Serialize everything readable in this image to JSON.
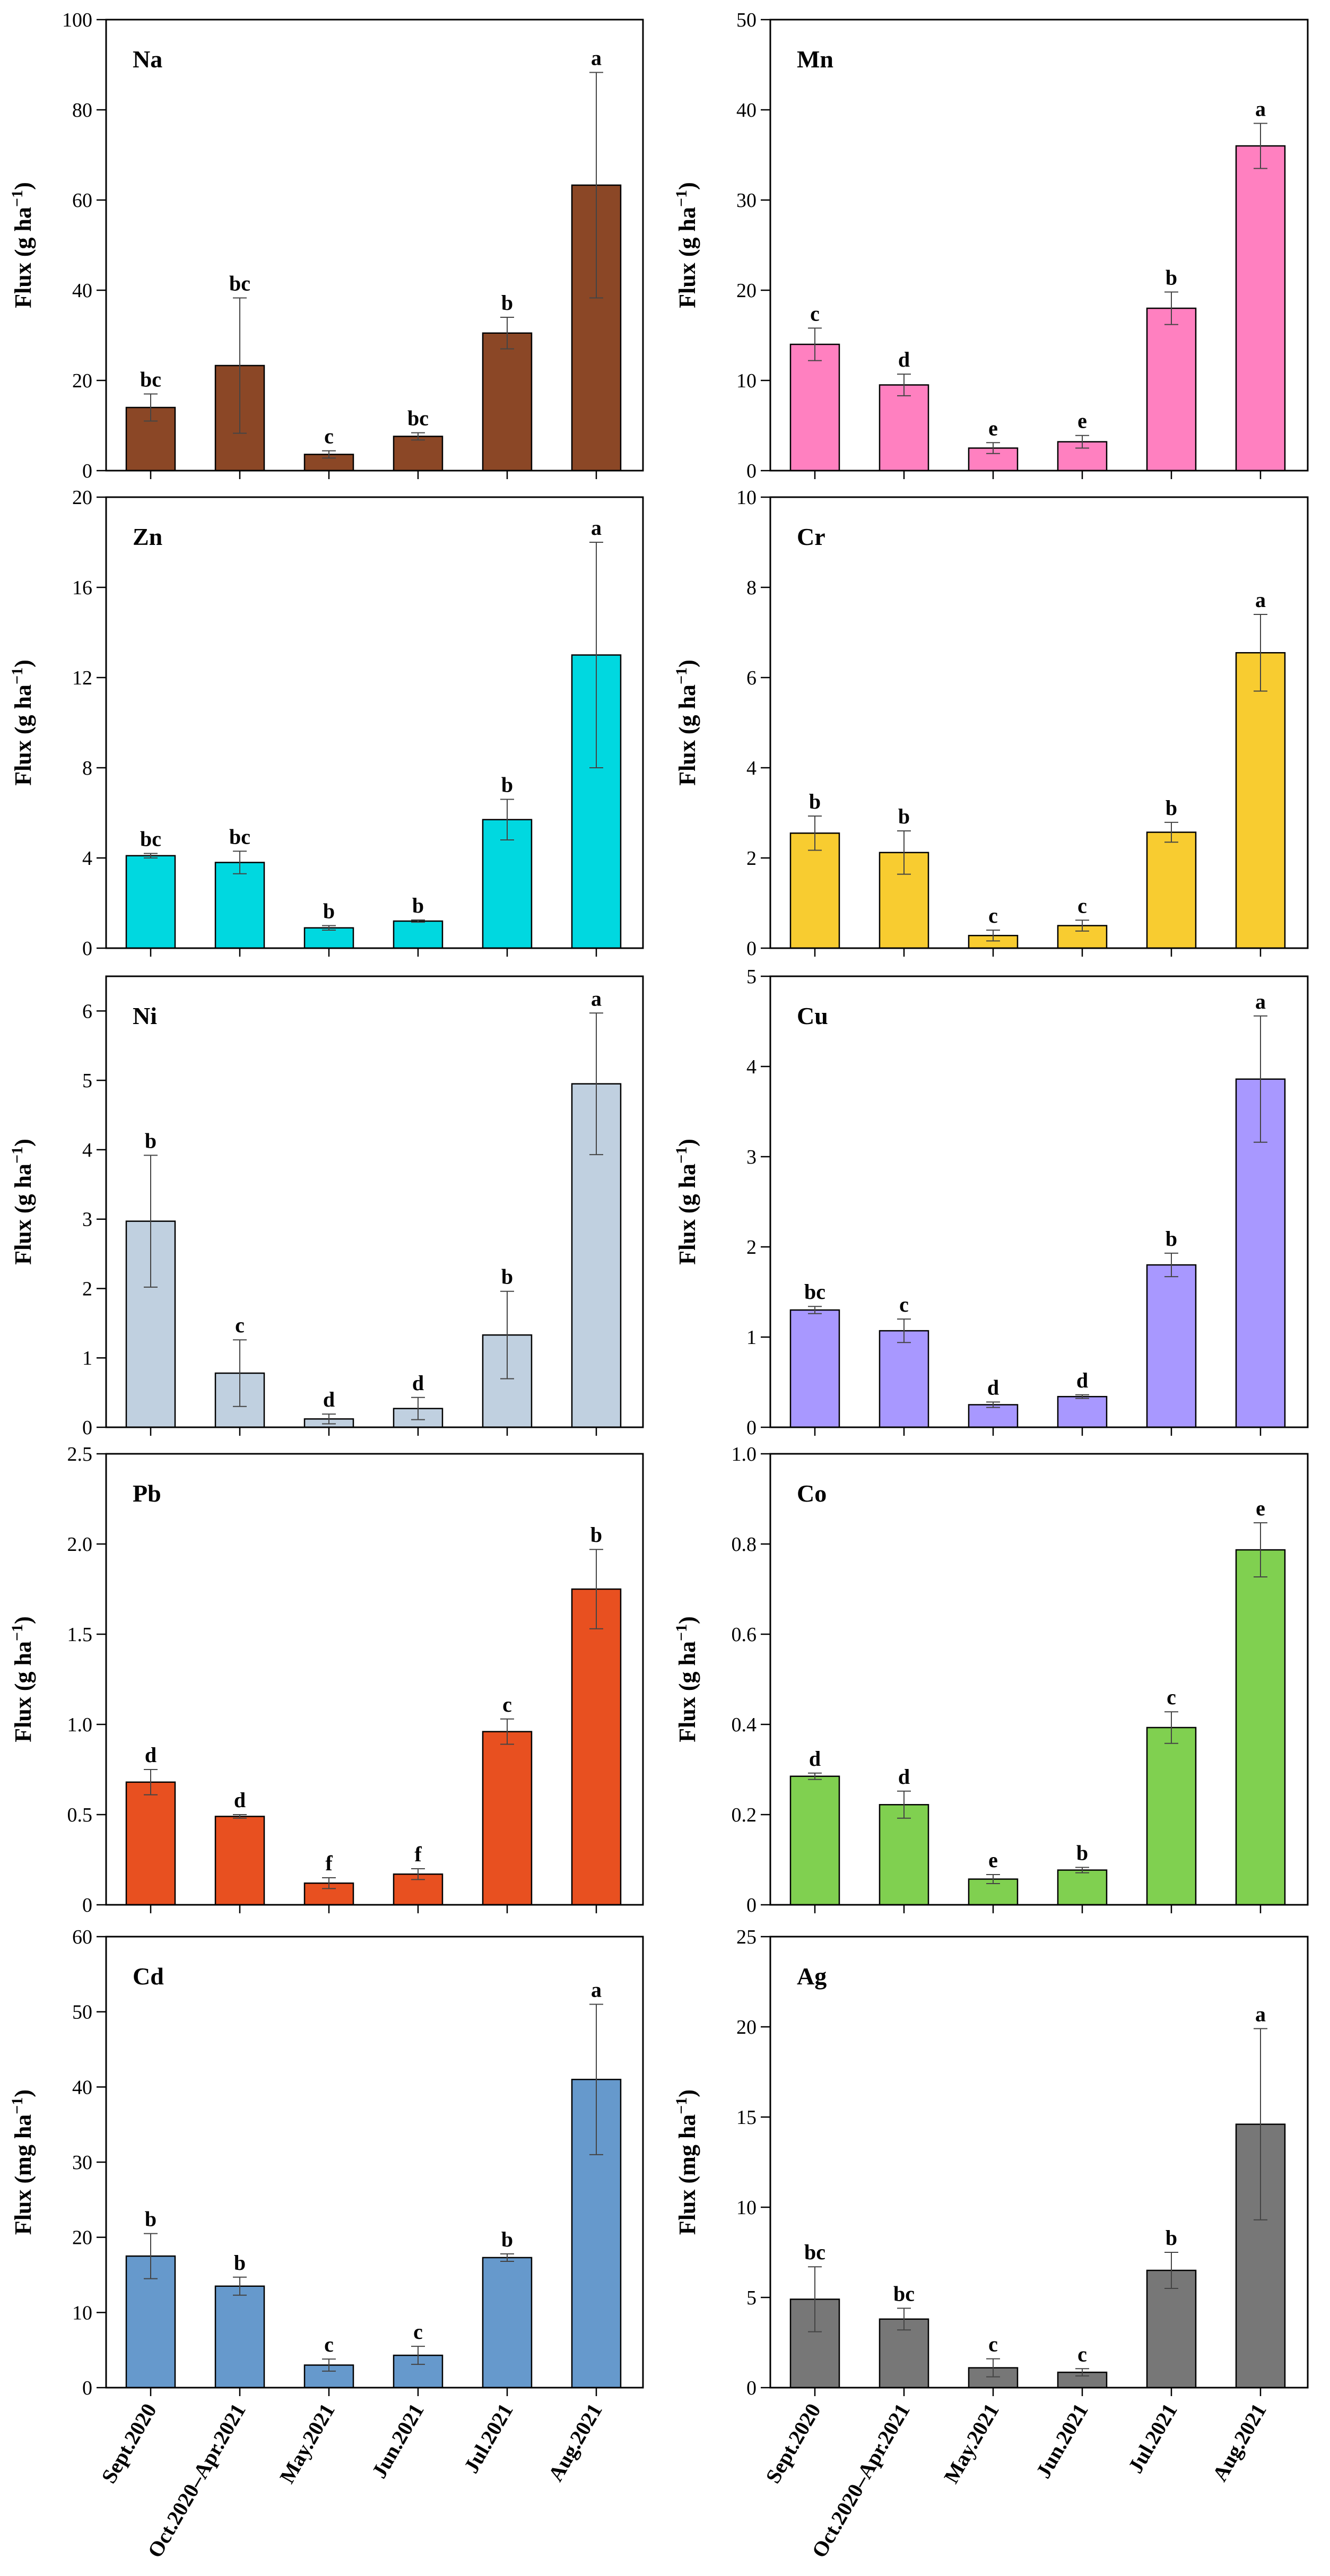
{
  "categories": [
    "Sept.2020",
    "Oct.2020–Apr.2021",
    "May.2021",
    "Jun.2021",
    "Jul.2021",
    "Aug.2021"
  ],
  "chart_data": [
    {
      "type": "bar",
      "title": "Na",
      "color": "#8b4726",
      "ylim": [
        0,
        100
      ],
      "ticks": [
        0,
        20,
        40,
        60,
        80,
        100
      ],
      "ylabel_parts": [
        "Flux (g ha",
        "−1",
        ")"
      ],
      "values": [
        14,
        23.3,
        3.6,
        7.6,
        30.5,
        63.3
      ],
      "errors": [
        3,
        15,
        0.8,
        0.8,
        3.5,
        25
      ],
      "sig": [
        "bc",
        "bc",
        "c",
        "bc",
        "b",
        "a"
      ]
    },
    {
      "type": "bar",
      "title": "Mn",
      "color": "#ff80c0",
      "ylim": [
        0,
        50
      ],
      "ticks": [
        0,
        10,
        20,
        30,
        40,
        50
      ],
      "ylabel_parts": [
        "Flux (g ha",
        "−1",
        ")"
      ],
      "values": [
        14,
        9.5,
        2.5,
        3.2,
        18,
        36
      ],
      "errors": [
        1.8,
        1.2,
        0.6,
        0.7,
        1.8,
        2.5
      ],
      "sig": [
        "c",
        "d",
        "e",
        "e",
        "b",
        "a"
      ]
    },
    {
      "type": "bar",
      "title": "Zn",
      "color": "#00d8e0",
      "ylim": [
        0,
        20
      ],
      "ticks": [
        0,
        4,
        8,
        12,
        16,
        20
      ],
      "ylabel_parts": [
        "Flux (g ha",
        "−1",
        ")"
      ],
      "values": [
        4.1,
        3.8,
        0.9,
        1.2,
        5.7,
        13
      ],
      "errors": [
        0.1,
        0.5,
        0.1,
        0.05,
        0.9,
        5
      ],
      "sig": [
        "bc",
        "bc",
        "b",
        "b",
        "b",
        "a"
      ]
    },
    {
      "type": "bar",
      "title": "Cr",
      "color": "#f8cc30",
      "ylim": [
        0,
        10
      ],
      "ticks": [
        0,
        2,
        4,
        6,
        8,
        10
      ],
      "ylabel_parts": [
        "Flux (g ha",
        "−1",
        ")"
      ],
      "values": [
        2.55,
        2.12,
        0.28,
        0.5,
        2.57,
        6.55
      ],
      "errors": [
        0.38,
        0.48,
        0.12,
        0.12,
        0.22,
        0.85
      ],
      "sig": [
        "b",
        "b",
        "c",
        "c",
        "b",
        "a"
      ]
    },
    {
      "type": "bar",
      "title": "Ni",
      "color": "#c0d0e0",
      "ylim": [
        0,
        6.5
      ],
      "ticks": [
        0,
        1,
        2,
        3,
        4,
        5,
        6
      ],
      "ylabel_parts": [
        "Flux (g ha",
        "−1",
        ")"
      ],
      "values": [
        2.97,
        0.78,
        0.12,
        0.27,
        1.33,
        4.95
      ],
      "errors": [
        0.95,
        0.48,
        0.07,
        0.16,
        0.63,
        1.02
      ],
      "sig": [
        "b",
        "c",
        "d",
        "d",
        "b",
        "a"
      ]
    },
    {
      "type": "bar",
      "title": "Cu",
      "color": "#a898ff",
      "ylim": [
        0,
        5
      ],
      "ticks": [
        0,
        1,
        2,
        3,
        4,
        5
      ],
      "ylabel_parts": [
        "Flux (g ha",
        "−1",
        ")"
      ],
      "values": [
        1.3,
        1.07,
        0.25,
        0.34,
        1.8,
        3.86
      ],
      "errors": [
        0.04,
        0.13,
        0.03,
        0.02,
        0.13,
        0.7
      ],
      "sig": [
        "bc",
        "c",
        "d",
        "d",
        "b",
        "a"
      ]
    },
    {
      "type": "bar",
      "title": "Pb",
      "color": "#e85020",
      "ylim": [
        0,
        2.5
      ],
      "ticks": [
        0,
        0.5,
        1.0,
        1.5,
        2.0,
        2.5
      ],
      "tick_labels": [
        "0",
        "0.5",
        "1.0",
        "1.5",
        "2.0",
        "2.5"
      ],
      "ylabel_parts": [
        "Flux (g ha",
        "−1",
        ")"
      ],
      "values": [
        0.68,
        0.49,
        0.12,
        0.17,
        0.96,
        1.75
      ],
      "errors": [
        0.07,
        0.01,
        0.03,
        0.03,
        0.07,
        0.22
      ],
      "sig": [
        "d",
        "d",
        "f",
        "f",
        "c",
        "b"
      ]
    },
    {
      "type": "bar",
      "title": "Co",
      "color": "#80d050",
      "ylim": [
        0,
        1.0
      ],
      "ticks": [
        0,
        0.2,
        0.4,
        0.6,
        0.8,
        1.0
      ],
      "tick_labels": [
        "0",
        "0.2",
        "0.4",
        "0.6",
        "0.8",
        "1.0"
      ],
      "ylabel_parts": [
        "Flux (g ha",
        "−1",
        ")"
      ],
      "values": [
        0.285,
        0.222,
        0.057,
        0.077,
        0.393,
        0.787
      ],
      "errors": [
        0.007,
        0.03,
        0.01,
        0.006,
        0.035,
        0.06
      ],
      "sig": [
        "d",
        "d",
        "e",
        "b",
        "c",
        "e"
      ]
    },
    {
      "type": "bar",
      "title": "Cd",
      "color": "#6699cc",
      "ylim": [
        0,
        60
      ],
      "ticks": [
        0,
        10,
        20,
        30,
        40,
        50,
        60
      ],
      "ylabel_parts": [
        "Flux (mg ha",
        "−1",
        ")"
      ],
      "values": [
        17.5,
        13.5,
        3,
        4.3,
        17.3,
        41
      ],
      "errors": [
        3,
        1.2,
        0.8,
        1.2,
        0.5,
        10
      ],
      "sig": [
        "b",
        "b",
        "c",
        "c",
        "b",
        "a"
      ]
    },
    {
      "type": "bar",
      "title": "Ag",
      "color": "#777777",
      "ylim": [
        0,
        25
      ],
      "ticks": [
        0,
        5,
        10,
        15,
        20,
        25
      ],
      "ylabel_parts": [
        "Flux (mg ha",
        "−1",
        ")"
      ],
      "values": [
        4.9,
        3.8,
        1.1,
        0.85,
        6.5,
        14.6
      ],
      "errors": [
        1.8,
        0.6,
        0.5,
        0.2,
        1.0,
        5.3
      ],
      "sig": [
        "bc",
        "bc",
        "c",
        "c",
        "b",
        "a"
      ]
    }
  ]
}
